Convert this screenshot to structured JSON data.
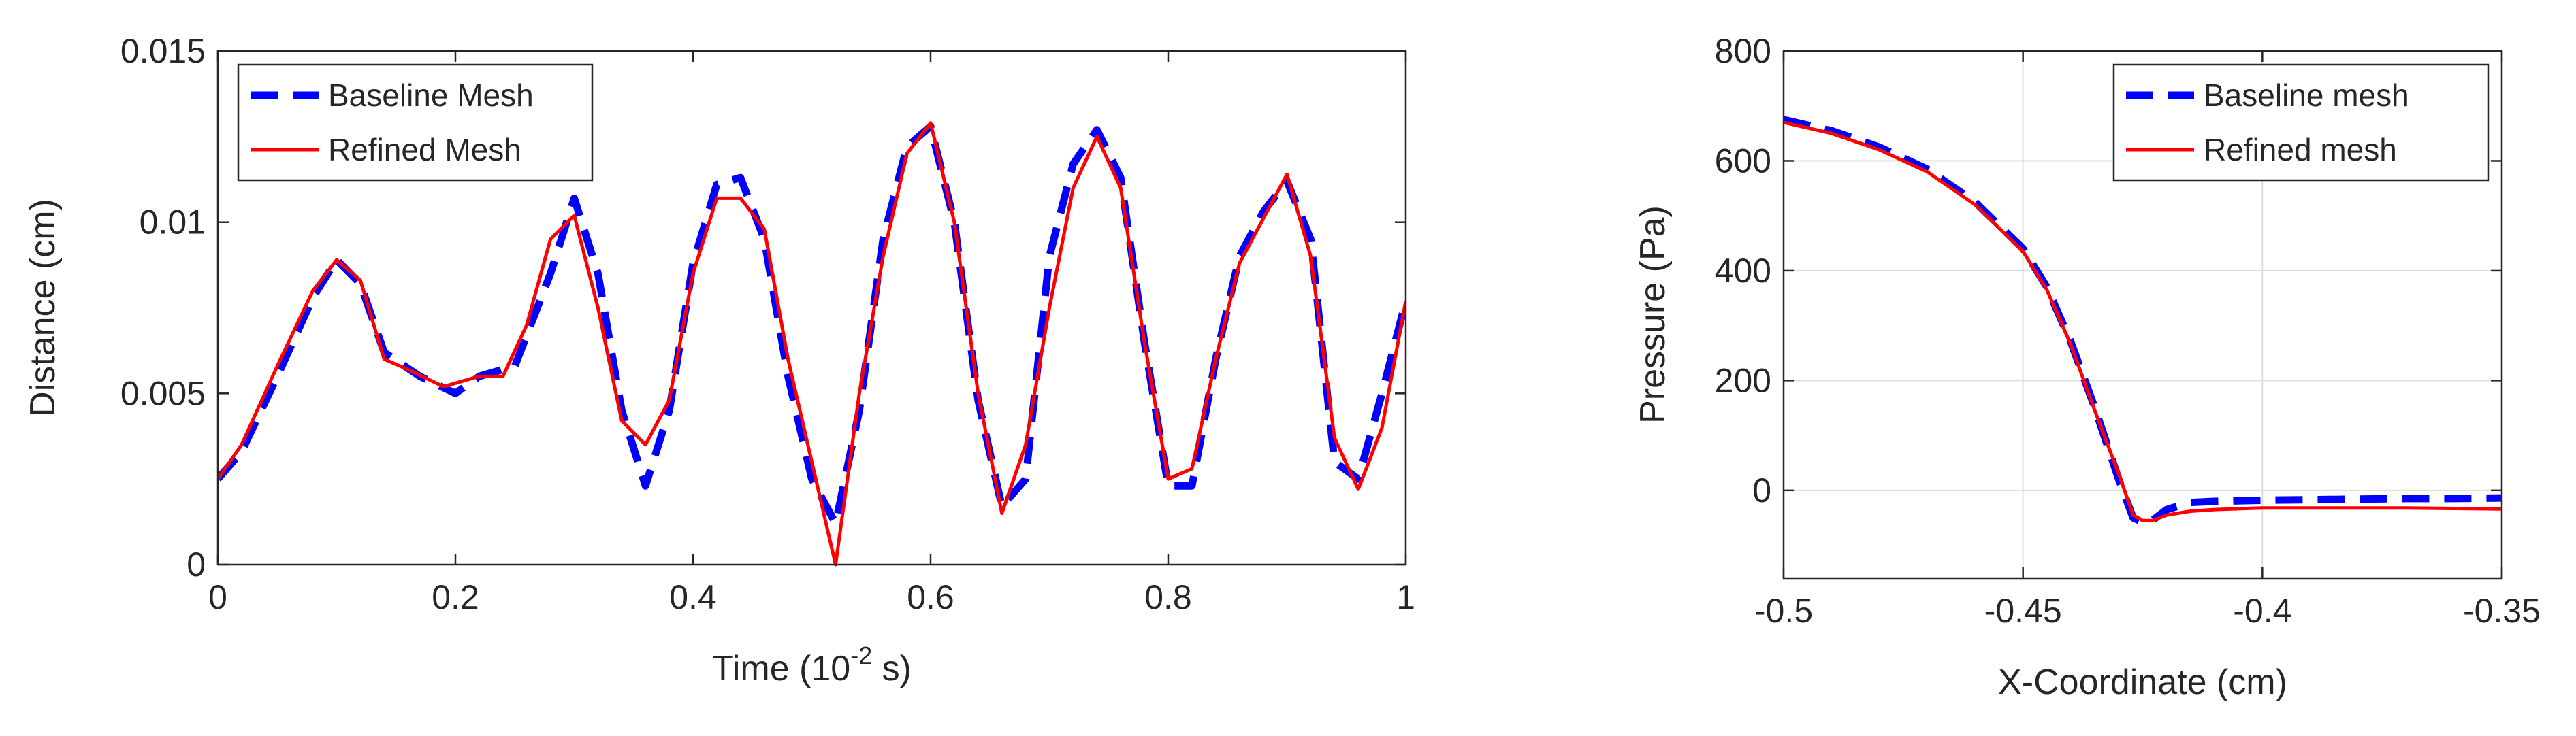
{
  "colors": {
    "baseline": "#0000ff",
    "refined": "#ff0000",
    "axis": "#262626",
    "grid": "#dcdcdc"
  },
  "chart_data": [
    {
      "type": "line",
      "xlabel": "Time (10",
      "xlabel_exponent": "-2",
      "xlabel_suffix": " s)",
      "ylabel": "Distance (cm)",
      "xlim": [
        0,
        1
      ],
      "ylim": [
        0,
        0.015
      ],
      "x_ticks": [
        0,
        0.2,
        0.4,
        0.6,
        0.8,
        1
      ],
      "x_tick_labels": [
        "0",
        "0.2",
        "0.4",
        "0.6",
        "0.8",
        "1"
      ],
      "y_ticks": [
        0,
        0.005,
        0.01,
        0.015
      ],
      "y_tick_labels": [
        "0",
        "0.005",
        "0.01",
        "0.015"
      ],
      "grid": false,
      "legend_position": "top-left",
      "series": [
        {
          "name": "Baseline Mesh",
          "style": "dashed",
          "x": [
            0,
            0.02,
            0.05,
            0.08,
            0.1,
            0.12,
            0.14,
            0.17,
            0.2,
            0.22,
            0.25,
            0.28,
            0.3,
            0.32,
            0.34,
            0.36,
            0.38,
            0.4,
            0.42,
            0.44,
            0.46,
            0.48,
            0.5,
            0.52,
            0.54,
            0.56,
            0.58,
            0.6,
            0.62,
            0.64,
            0.66,
            0.68,
            0.7,
            0.72,
            0.74,
            0.76,
            0.78,
            0.8,
            0.82,
            0.84,
            0.86,
            0.88,
            0.9,
            0.92,
            0.94,
            0.96,
            0.98,
            1.0
          ],
          "values": [
            0.0025,
            0.0033,
            0.0055,
            0.0078,
            0.0089,
            0.0082,
            0.0062,
            0.0055,
            0.005,
            0.0055,
            0.0058,
            0.0085,
            0.0107,
            0.0085,
            0.0045,
            0.0023,
            0.0045,
            0.0088,
            0.0111,
            0.0113,
            0.0095,
            0.0055,
            0.0025,
            0.0012,
            0.0045,
            0.0095,
            0.0122,
            0.0128,
            0.01,
            0.0048,
            0.0017,
            0.0025,
            0.009,
            0.0117,
            0.0127,
            0.0113,
            0.0065,
            0.0023,
            0.0023,
            0.006,
            0.009,
            0.0103,
            0.0112,
            0.0095,
            0.003,
            0.0025,
            0.005,
            0.0077
          ]
        },
        {
          "name": "Refined Mesh",
          "style": "solid",
          "x": [
            0,
            0.02,
            0.05,
            0.08,
            0.1,
            0.12,
            0.14,
            0.16,
            0.19,
            0.22,
            0.24,
            0.26,
            0.28,
            0.3,
            0.32,
            0.34,
            0.36,
            0.38,
            0.4,
            0.42,
            0.44,
            0.46,
            0.48,
            0.5,
            0.52,
            0.54,
            0.56,
            0.58,
            0.6,
            0.62,
            0.64,
            0.66,
            0.68,
            0.7,
            0.72,
            0.74,
            0.76,
            0.78,
            0.8,
            0.82,
            0.84,
            0.86,
            0.9,
            0.92,
            0.94,
            0.96,
            0.98,
            1.0
          ],
          "values": [
            0.0025,
            0.0035,
            0.0058,
            0.008,
            0.0089,
            0.0083,
            0.006,
            0.0057,
            0.0052,
            0.0055,
            0.0055,
            0.007,
            0.0095,
            0.0102,
            0.0075,
            0.0042,
            0.0035,
            0.0048,
            0.0085,
            0.0107,
            0.0107,
            0.0098,
            0.006,
            0.003,
            0.0,
            0.005,
            0.009,
            0.012,
            0.0129,
            0.01,
            0.005,
            0.0015,
            0.0035,
            0.0075,
            0.011,
            0.0125,
            0.011,
            0.0065,
            0.0025,
            0.0028,
            0.006,
            0.0088,
            0.0114,
            0.009,
            0.0037,
            0.0022,
            0.004,
            0.0077
          ]
        }
      ]
    },
    {
      "type": "line",
      "xlabel": "X-Coordinate (cm)",
      "ylabel": "Pressure (Pa)",
      "xlim": [
        -0.5,
        -0.35
      ],
      "ylim": [
        -160,
        800
      ],
      "x_ticks": [
        -0.5,
        -0.45,
        -0.4,
        -0.35
      ],
      "x_tick_labels": [
        "-0.5",
        "-0.45",
        "-0.4",
        "-0.35"
      ],
      "y_ticks": [
        0,
        200,
        400,
        600,
        800
      ],
      "y_tick_labels": [
        "0",
        "200",
        "400",
        "600",
        "800"
      ],
      "grid": true,
      "legend_position": "top-right",
      "series": [
        {
          "name": "Baseline mesh",
          "style": "dashed",
          "x": [
            -0.5,
            -0.49,
            -0.48,
            -0.47,
            -0.46,
            -0.45,
            -0.445,
            -0.44,
            -0.435,
            -0.43,
            -0.427,
            -0.425,
            -0.423,
            -0.42,
            -0.415,
            -0.41,
            -0.4,
            -0.39,
            -0.38,
            -0.37,
            -0.36,
            -0.35
          ],
          "values": [
            675,
            655,
            625,
            585,
            525,
            440,
            370,
            270,
            150,
            20,
            -50,
            -58,
            -55,
            -35,
            -22,
            -20,
            -18,
            -17,
            -16,
            -15,
            -15,
            -14
          ]
        },
        {
          "name": "Refined mesh",
          "style": "solid",
          "x": [
            -0.5,
            -0.49,
            -0.48,
            -0.47,
            -0.46,
            -0.45,
            -0.445,
            -0.44,
            -0.435,
            -0.43,
            -0.427,
            -0.425,
            -0.423,
            -0.42,
            -0.415,
            -0.41,
            -0.4,
            -0.39,
            -0.38,
            -0.37,
            -0.36,
            -0.35
          ],
          "values": [
            670,
            650,
            620,
            580,
            520,
            435,
            365,
            265,
            145,
            30,
            -45,
            -55,
            -55,
            -45,
            -38,
            -35,
            -32,
            -32,
            -32,
            -32,
            -33,
            -34
          ]
        }
      ]
    }
  ]
}
